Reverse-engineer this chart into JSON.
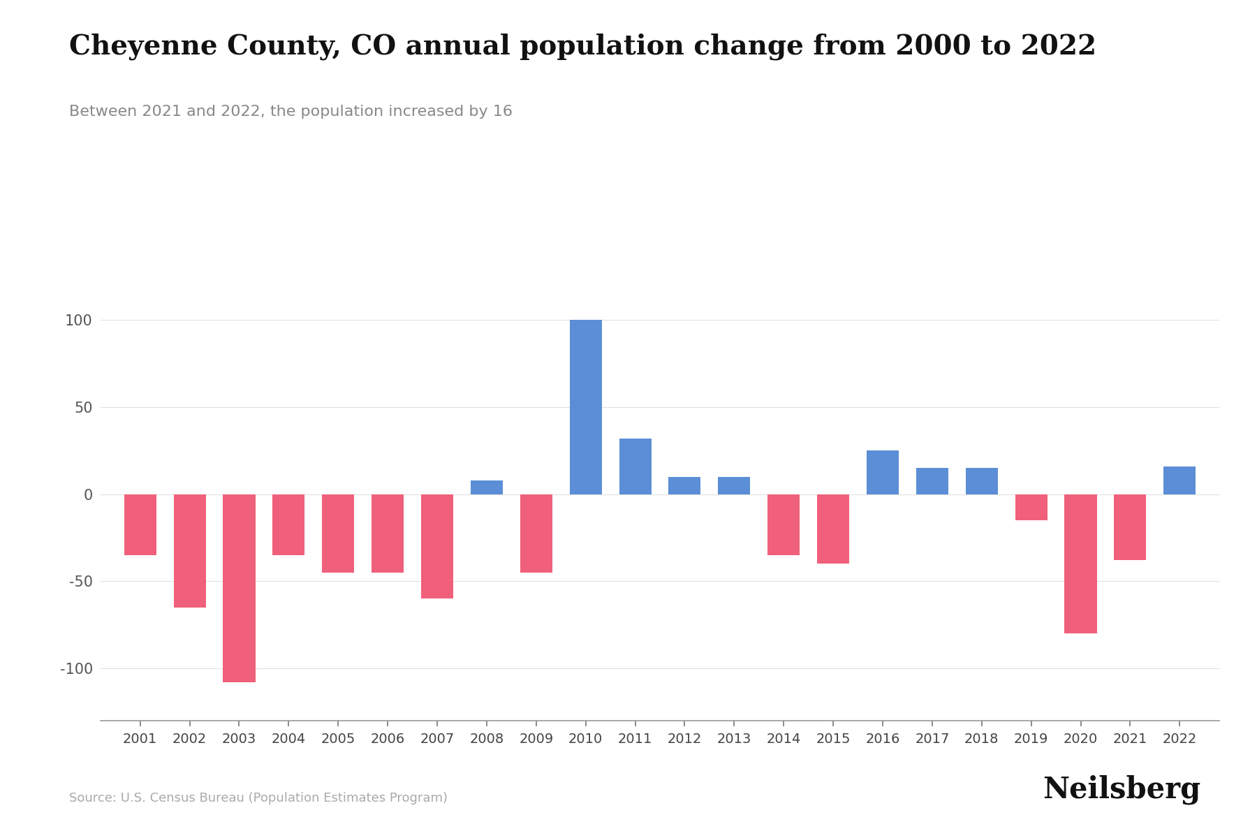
{
  "title": "Cheyenne County, CO annual population change from 2000 to 2022",
  "subtitle": "Between 2021 and 2022, the population increased by 16",
  "source": "Source: U.S. Census Bureau (Population Estimates Program)",
  "branding": "Neilsberg",
  "years": [
    2001,
    2002,
    2003,
    2004,
    2005,
    2006,
    2007,
    2008,
    2009,
    2010,
    2011,
    2012,
    2013,
    2014,
    2015,
    2016,
    2017,
    2018,
    2019,
    2020,
    2021,
    2022
  ],
  "values": [
    -35,
    -65,
    -108,
    -35,
    -45,
    -45,
    -60,
    8,
    -45,
    100,
    32,
    10,
    10,
    -35,
    -40,
    25,
    15,
    15,
    -15,
    -80,
    -38,
    16
  ],
  "positive_color": "#5b8ed6",
  "negative_color": "#f0607a",
  "background_color": "#ffffff",
  "title_fontsize": 28,
  "subtitle_fontsize": 16,
  "source_fontsize": 13,
  "branding_fontsize": 30,
  "ylim": [
    -130,
    120
  ],
  "yticks": [
    -100,
    -50,
    0,
    50,
    100
  ]
}
